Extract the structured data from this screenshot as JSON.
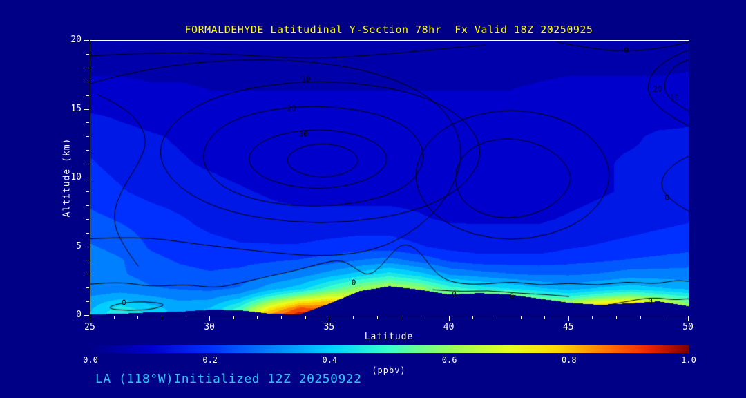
{
  "title": "FORMALDEHYDE Latitudinal Y-Section 78hr  Fx Valid 18Z 20250925",
  "footer": "LA (118°W)Initialized 12Z 20250922",
  "colors": {
    "background": "#000087",
    "title_text": "#FFFF00",
    "axis_text": "#FFFFFF",
    "footer_text": "#2EC8FF",
    "contour_line": "#000000",
    "frame": "#FFFFFF"
  },
  "axes": {
    "x": {
      "label": "Latitude",
      "min": 25,
      "max": 50,
      "major_ticks": [
        25,
        30,
        35,
        40,
        45,
        50
      ],
      "minor_step": 1
    },
    "y": {
      "label": "Altitude (km)",
      "min": 0,
      "max": 20,
      "major_ticks": [
        0,
        5,
        10,
        15,
        20
      ],
      "minor_step": 1
    }
  },
  "colorbar": {
    "label": "(ppbv)",
    "min": 0.0,
    "max": 1.0,
    "tick_labels": [
      "0.0",
      "0.2",
      "0.4",
      "0.6",
      "0.8",
      "1.0"
    ],
    "stops": [
      {
        "t": 0.0,
        "c": "#000087"
      },
      {
        "t": 0.1,
        "c": "#0000CC"
      },
      {
        "t": 0.2,
        "c": "#0030FF"
      },
      {
        "t": 0.3,
        "c": "#0080FF"
      },
      {
        "t": 0.4,
        "c": "#00CFFF"
      },
      {
        "t": 0.5,
        "c": "#3CFFC8"
      },
      {
        "t": 0.6,
        "c": "#96FF5A"
      },
      {
        "t": 0.7,
        "c": "#E6FF1E"
      },
      {
        "t": 0.78,
        "c": "#FFD800"
      },
      {
        "t": 0.86,
        "c": "#FF7A00"
      },
      {
        "t": 0.93,
        "c": "#F02800"
      },
      {
        "t": 1.0,
        "c": "#7D0000"
      }
    ]
  },
  "chart_data": {
    "type": "heatmap",
    "title": "FORMALDEHYDE Latitudinal Y-Section 78hr Fx Valid 18Z 20250925",
    "units": "ppbv",
    "xlabel": "Latitude",
    "ylabel": "Altitude (km)",
    "xlim": [
      25,
      50
    ],
    "ylim": [
      0,
      20
    ],
    "x": [
      25,
      26.25,
      27.5,
      28.75,
      30,
      31.25,
      32.5,
      33.75,
      35,
      36.25,
      37.5,
      38.75,
      40,
      41.25,
      42.5,
      43.75,
      45,
      46.25,
      47.5,
      48.75,
      50
    ],
    "y": [
      0,
      0.5,
      1,
      1.5,
      2,
      3,
      4,
      5,
      7,
      9,
      11,
      13,
      16,
      20
    ],
    "values": [
      [
        0.38,
        0.37,
        0.35,
        0.32,
        0.3,
        0.29,
        0.3,
        0.28,
        0.24,
        0.2,
        0.18,
        0.16,
        0.1,
        0.03
      ],
      [
        0.48,
        0.45,
        0.4,
        0.34,
        0.3,
        0.28,
        0.28,
        0.26,
        0.22,
        0.18,
        0.16,
        0.14,
        0.1,
        0.03
      ],
      [
        0.42,
        0.4,
        0.36,
        0.32,
        0.28,
        0.26,
        0.24,
        0.22,
        0.2,
        0.16,
        0.14,
        0.13,
        0.09,
        0.03
      ],
      [
        0.36,
        0.35,
        0.33,
        0.3,
        0.27,
        0.24,
        0.22,
        0.2,
        0.18,
        0.15,
        0.13,
        0.12,
        0.09,
        0.03
      ],
      [
        0.4,
        0.38,
        0.34,
        0.3,
        0.26,
        0.23,
        0.21,
        0.19,
        0.16,
        0.14,
        0.12,
        0.11,
        0.08,
        0.03
      ],
      [
        0.55,
        0.5,
        0.42,
        0.34,
        0.28,
        0.24,
        0.21,
        0.18,
        0.15,
        0.13,
        0.11,
        0.1,
        0.08,
        0.03
      ],
      [
        0.85,
        0.75,
        0.6,
        0.45,
        0.35,
        0.27,
        0.22,
        0.18,
        0.14,
        0.12,
        0.1,
        0.1,
        0.08,
        0.03
      ],
      [
        0.97,
        0.9,
        0.75,
        0.55,
        0.4,
        0.3,
        0.23,
        0.18,
        0.14,
        0.11,
        0.1,
        0.09,
        0.08,
        0.03
      ],
      [
        0.9,
        0.88,
        0.8,
        0.65,
        0.5,
        0.35,
        0.25,
        0.19,
        0.14,
        0.11,
        0.1,
        0.09,
        0.08,
        0.03
      ],
      [
        0.75,
        0.75,
        0.72,
        0.68,
        0.6,
        0.4,
        0.28,
        0.2,
        0.14,
        0.11,
        0.1,
        0.09,
        0.08,
        0.03
      ],
      [
        0.6,
        0.6,
        0.6,
        0.62,
        0.65,
        0.45,
        0.3,
        0.2,
        0.14,
        0.11,
        0.1,
        0.09,
        0.08,
        0.03
      ],
      [
        0.5,
        0.5,
        0.55,
        0.6,
        0.6,
        0.4,
        0.26,
        0.18,
        0.13,
        0.11,
        0.1,
        0.09,
        0.08,
        0.03
      ],
      [
        0.5,
        0.5,
        0.55,
        0.6,
        0.5,
        0.32,
        0.22,
        0.16,
        0.12,
        0.1,
        0.09,
        0.09,
        0.08,
        0.03
      ],
      [
        0.55,
        0.55,
        0.6,
        0.62,
        0.45,
        0.3,
        0.2,
        0.15,
        0.12,
        0.1,
        0.09,
        0.09,
        0.08,
        0.03
      ],
      [
        0.6,
        0.6,
        0.62,
        0.6,
        0.42,
        0.28,
        0.2,
        0.15,
        0.12,
        0.1,
        0.09,
        0.09,
        0.08,
        0.03
      ],
      [
        0.65,
        0.65,
        0.6,
        0.5,
        0.38,
        0.27,
        0.2,
        0.15,
        0.12,
        0.1,
        0.1,
        0.1,
        0.09,
        0.03
      ],
      [
        0.75,
        0.7,
        0.6,
        0.45,
        0.35,
        0.27,
        0.21,
        0.17,
        0.13,
        0.11,
        0.11,
        0.11,
        0.1,
        0.03
      ],
      [
        0.92,
        0.85,
        0.7,
        0.5,
        0.38,
        0.28,
        0.22,
        0.18,
        0.14,
        0.12,
        0.12,
        0.12,
        0.1,
        0.03
      ],
      [
        0.97,
        0.92,
        0.75,
        0.55,
        0.4,
        0.3,
        0.23,
        0.19,
        0.15,
        0.13,
        0.13,
        0.12,
        0.1,
        0.03
      ],
      [
        0.85,
        0.8,
        0.68,
        0.5,
        0.38,
        0.3,
        0.24,
        0.2,
        0.16,
        0.14,
        0.13,
        0.13,
        0.1,
        0.03
      ],
      [
        0.65,
        0.62,
        0.55,
        0.45,
        0.36,
        0.3,
        0.25,
        0.21,
        0.17,
        0.15,
        0.14,
        0.13,
        0.11,
        0.03
      ]
    ],
    "terrain_km": [
      0.1,
      0.15,
      0.25,
      0.3,
      0.45,
      0.4,
      0.15,
      0.1,
      0.9,
      1.8,
      2.15,
      1.9,
      1.55,
      1.65,
      1.55,
      1.25,
      0.95,
      0.8,
      0.9,
      1.05,
      0.7
    ],
    "contour_labels": [
      {
        "text": "10",
        "lat": 34.0,
        "alt": 17.2
      },
      {
        "text": "20",
        "lat": 33.4,
        "alt": 15.1
      },
      {
        "text": "30",
        "lat": 33.9,
        "alt": 13.2
      },
      {
        "text": "-0",
        "lat": 47.3,
        "alt": 19.3
      },
      {
        "text": "20",
        "lat": 48.7,
        "alt": 16.5
      },
      {
        "text": "10",
        "lat": 49.4,
        "alt": 15.9
      },
      {
        "text": "0",
        "lat": 49.1,
        "alt": 8.6
      },
      {
        "text": "0",
        "lat": 26.4,
        "alt": 0.95
      },
      {
        "text": "0",
        "lat": 36.0,
        "alt": 2.4
      },
      {
        "text": "0",
        "lat": 40.2,
        "alt": 1.55
      },
      {
        "text": "0",
        "lat": 42.6,
        "alt": 1.4
      },
      {
        "text": "0",
        "lat": 48.4,
        "alt": 1.05
      }
    ],
    "contours": [
      {
        "label": "0-outer",
        "closed": false,
        "pts": [
          [
            25,
            5.6
          ],
          [
            27,
            5.8
          ],
          [
            29.5,
            5.2
          ],
          [
            32,
            4.7
          ],
          [
            34.5,
            4.3
          ],
          [
            36.5,
            4.6
          ],
          [
            38,
            5.6
          ],
          [
            39.3,
            7.3
          ],
          [
            40.2,
            9.5
          ],
          [
            40.6,
            12.0
          ],
          [
            40.0,
            14.7
          ],
          [
            38.4,
            16.8
          ],
          [
            35.8,
            18.2
          ],
          [
            32.5,
            18.7
          ],
          [
            29.0,
            18.4
          ],
          [
            26.5,
            17.6
          ],
          [
            25,
            16.9
          ]
        ]
      },
      {
        "label": "10",
        "closed": true,
        "pts": [
          [
            41.8,
            11.9
          ],
          [
            39.7,
            15.9
          ],
          [
            34.6,
            17.4
          ],
          [
            29.5,
            15.9
          ],
          [
            27.4,
            11.9
          ],
          [
            29.5,
            7.9
          ],
          [
            34.6,
            6.4
          ],
          [
            39.7,
            7.9
          ]
        ]
      },
      {
        "label": "20",
        "closed": true,
        "pts": [
          [
            39.2,
            11.6
          ],
          [
            38.0,
            14.4
          ],
          [
            34.3,
            15.5
          ],
          [
            30.7,
            14.4
          ],
          [
            29.4,
            11.6
          ],
          [
            30.7,
            8.8
          ],
          [
            34.3,
            7.7
          ],
          [
            38.0,
            8.8
          ]
        ]
      },
      {
        "label": "30",
        "closed": true,
        "pts": [
          [
            37.6,
            11.4
          ],
          [
            36.7,
            13.0
          ],
          [
            34.5,
            13.7
          ],
          [
            32.3,
            13.0
          ],
          [
            31.4,
            11.4
          ],
          [
            32.3,
            9.8
          ],
          [
            34.5,
            9.1
          ],
          [
            36.7,
            9.8
          ]
        ]
      },
      {
        "label": "40",
        "closed": true,
        "pts": [
          [
            36.3,
            11.3
          ],
          [
            35.8,
            12.2
          ],
          [
            34.7,
            12.6
          ],
          [
            33.6,
            12.2
          ],
          [
            33.1,
            11.3
          ],
          [
            33.6,
            10.4
          ],
          [
            34.7,
            10.0
          ],
          [
            35.8,
            10.4
          ]
        ]
      },
      {
        "label": "10-right",
        "closed": true,
        "pts": [
          [
            47.0,
            10.2
          ],
          [
            45.7,
            13.8
          ],
          [
            42.6,
            15.3
          ],
          [
            39.5,
            13.8
          ],
          [
            38.3,
            10.2
          ],
          [
            39.5,
            6.7
          ],
          [
            42.6,
            5.2
          ],
          [
            45.7,
            6.7
          ]
        ]
      },
      {
        "label": "20-right",
        "closed": true,
        "pts": [
          [
            45.3,
            10.0
          ],
          [
            44.3,
            12.2
          ],
          [
            42.4,
            13.1
          ],
          [
            40.7,
            12.2
          ],
          [
            40.1,
            10.0
          ],
          [
            40.7,
            7.8
          ],
          [
            42.4,
            6.9
          ],
          [
            44.3,
            7.8
          ]
        ]
      },
      {
        "label": "top-right-20",
        "closed": false,
        "pts": [
          [
            50,
            13.8
          ],
          [
            48.9,
            14.8
          ],
          [
            48.2,
            16.3
          ],
          [
            48.5,
            17.9
          ],
          [
            49.5,
            19.0
          ],
          [
            50,
            19.3
          ]
        ]
      },
      {
        "label": "top-right-10",
        "closed": false,
        "pts": [
          [
            50,
            14.9
          ],
          [
            49.2,
            15.6
          ],
          [
            48.9,
            16.9
          ],
          [
            49.4,
            18.2
          ],
          [
            50,
            18.6
          ]
        ]
      },
      {
        "label": "-0-top-right",
        "closed": false,
        "pts": [
          [
            44.5,
            19.9
          ],
          [
            46.0,
            19.4
          ],
          [
            47.5,
            19.2
          ],
          [
            49.0,
            19.5
          ],
          [
            50,
            19.9
          ]
        ]
      },
      {
        "label": "0-right-mid",
        "closed": false,
        "pts": [
          [
            50,
            7.6
          ],
          [
            49.0,
            8.6
          ],
          [
            48.8,
            10.0
          ],
          [
            49.5,
            11.2
          ],
          [
            50,
            11.6
          ]
        ]
      },
      {
        "label": "0-bottom",
        "closed": false,
        "pts": [
          [
            25,
            2.3
          ],
          [
            26.2,
            2.5
          ],
          [
            27.5,
            2.1
          ],
          [
            29,
            2.3
          ],
          [
            30.2,
            2.0
          ],
          [
            31.3,
            2.4
          ],
          [
            32.5,
            2.9
          ],
          [
            33.6,
            3.3
          ],
          [
            34.6,
            3.8
          ],
          [
            35.5,
            4.1
          ],
          [
            36.1,
            3.4
          ],
          [
            36.6,
            2.9
          ],
          [
            37.1,
            3.5
          ],
          [
            37.6,
            4.6
          ],
          [
            38.1,
            5.3
          ],
          [
            38.7,
            4.8
          ],
          [
            39.2,
            3.6
          ],
          [
            39.7,
            2.7
          ],
          [
            40.5,
            2.3
          ],
          [
            41.6,
            2.3
          ],
          [
            42.7,
            2.5
          ],
          [
            43.8,
            2.2
          ],
          [
            45.0,
            2.4
          ],
          [
            46.2,
            2.2
          ],
          [
            47.4,
            2.5
          ],
          [
            48.6,
            2.3
          ],
          [
            49.5,
            2.6
          ],
          [
            50,
            2.5
          ]
        ]
      },
      {
        "label": "0-loop-left",
        "closed": true,
        "pts": [
          [
            25.6,
            0.55
          ],
          [
            26.3,
            0.95
          ],
          [
            27.3,
            1.05
          ],
          [
            28.2,
            0.85
          ],
          [
            27.7,
            0.5
          ],
          [
            26.6,
            0.35
          ]
        ]
      },
      {
        "label": "0-bottom-right",
        "closed": false,
        "pts": [
          [
            46.4,
            0.7
          ],
          [
            47.4,
            1.05
          ],
          [
            48.5,
            1.35
          ],
          [
            49.4,
            1.15
          ],
          [
            50,
            1.25
          ]
        ]
      },
      {
        "label": "0-terrain-mid",
        "closed": false,
        "pts": [
          [
            39.3,
            1.9
          ],
          [
            40.4,
            1.75
          ],
          [
            41.6,
            1.85
          ],
          [
            42.8,
            1.65
          ],
          [
            44.0,
            1.55
          ],
          [
            45.0,
            1.4
          ]
        ]
      },
      {
        "label": "left-inner",
        "closed": false,
        "pts": [
          [
            27.0,
            3.6
          ],
          [
            26.3,
            5.2
          ],
          [
            25.9,
            7.2
          ],
          [
            26.3,
            9.2
          ],
          [
            27.0,
            11.0
          ],
          [
            27.4,
            12.8
          ],
          [
            26.9,
            14.4
          ],
          [
            26.1,
            15.4
          ],
          [
            25.3,
            16.1
          ]
        ]
      },
      {
        "label": "-0-top-left",
        "closed": false,
        "pts": [
          [
            25,
            18.9
          ],
          [
            28,
            19.2
          ],
          [
            31,
            19.0
          ],
          [
            34,
            18.7
          ],
          [
            36.5,
            18.9
          ],
          [
            39,
            19.3
          ],
          [
            41.5,
            19.7
          ]
        ]
      }
    ]
  }
}
